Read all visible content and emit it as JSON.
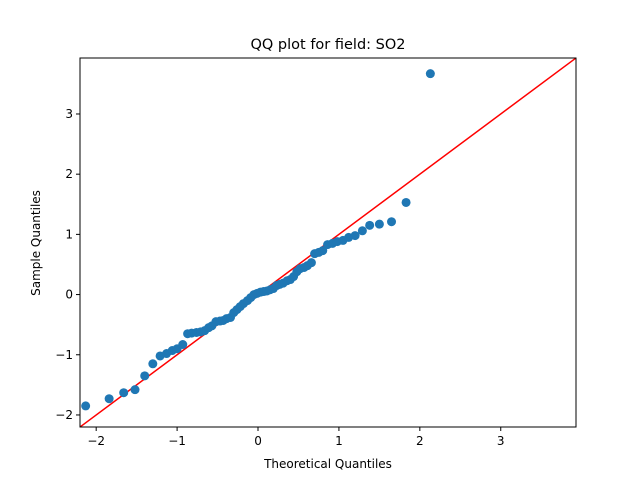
{
  "chart_data": {
    "type": "scatter",
    "title": "QQ plot for field: SO2",
    "xlabel": "Theoretical Quantiles",
    "ylabel": "Sample Quantiles",
    "xlim": [
      -2.2,
      3.93
    ],
    "ylim": [
      -2.2,
      3.93
    ],
    "xticks": [
      -2,
      -1,
      0,
      1,
      2,
      3
    ],
    "yticks": [
      -2,
      -1,
      0,
      1,
      2,
      3
    ],
    "grid": false,
    "marker_color": "#1f77b4",
    "reference_line": {
      "slope": 1,
      "intercept": 0,
      "color": "#ff0000"
    },
    "points": [
      [
        -2.13,
        -1.85
      ],
      [
        -1.84,
        -1.73
      ],
      [
        -1.66,
        -1.63
      ],
      [
        -1.52,
        -1.58
      ],
      [
        -1.4,
        -1.35
      ],
      [
        -1.3,
        -1.15
      ],
      [
        -1.21,
        -1.02
      ],
      [
        -1.13,
        -0.98
      ],
      [
        -1.06,
        -0.93
      ],
      [
        -1.0,
        -0.9
      ],
      [
        -0.93,
        -0.83
      ],
      [
        -0.87,
        -0.65
      ],
      [
        -0.82,
        -0.64
      ],
      [
        -0.76,
        -0.63
      ],
      [
        -0.71,
        -0.62
      ],
      [
        -0.66,
        -0.6
      ],
      [
        -0.61,
        -0.55
      ],
      [
        -0.57,
        -0.52
      ],
      [
        -0.52,
        -0.45
      ],
      [
        -0.47,
        -0.44
      ],
      [
        -0.43,
        -0.43
      ],
      [
        -0.39,
        -0.4
      ],
      [
        -0.34,
        -0.38
      ],
      [
        -0.3,
        -0.3
      ],
      [
        -0.26,
        -0.25
      ],
      [
        -0.22,
        -0.2
      ],
      [
        -0.18,
        -0.15
      ],
      [
        -0.13,
        -0.1
      ],
      [
        -0.09,
        -0.05
      ],
      [
        -0.05,
        0.0
      ],
      [
        -0.01,
        0.02
      ],
      [
        0.03,
        0.04
      ],
      [
        0.07,
        0.05
      ],
      [
        0.11,
        0.06
      ],
      [
        0.15,
        0.08
      ],
      [
        0.19,
        0.1
      ],
      [
        0.23,
        0.15
      ],
      [
        0.27,
        0.17
      ],
      [
        0.31,
        0.19
      ],
      [
        0.36,
        0.23
      ],
      [
        0.4,
        0.25
      ],
      [
        0.44,
        0.3
      ],
      [
        0.48,
        0.38
      ],
      [
        0.52,
        0.43
      ],
      [
        0.57,
        0.45
      ],
      [
        0.61,
        0.48
      ],
      [
        0.66,
        0.53
      ],
      [
        0.7,
        0.68
      ],
      [
        0.75,
        0.7
      ],
      [
        0.8,
        0.73
      ],
      [
        0.86,
        0.83
      ],
      [
        0.92,
        0.85
      ],
      [
        0.98,
        0.88
      ],
      [
        1.05,
        0.9
      ],
      [
        1.12,
        0.95
      ],
      [
        1.2,
        0.98
      ],
      [
        1.29,
        1.06
      ],
      [
        1.38,
        1.15
      ],
      [
        1.5,
        1.17
      ],
      [
        1.65,
        1.21
      ],
      [
        1.83,
        1.53
      ],
      [
        2.13,
        3.67
      ]
    ]
  }
}
